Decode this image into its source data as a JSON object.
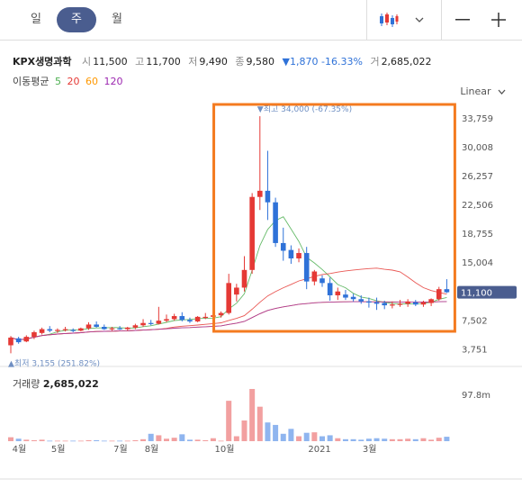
{
  "period_tabs": [
    {
      "label": "일"
    },
    {
      "label": "주",
      "active": true
    },
    {
      "label": "월"
    }
  ],
  "toolbar": {
    "chart_type_icon": "candlestick-icon",
    "dropdown_icon": "chevron-down-icon",
    "zoom_out": "—",
    "zoom_in": "+"
  },
  "summary": {
    "name": "KPX생명과학",
    "open_label": "시",
    "open": "11,500",
    "high_label": "고",
    "high": "11,700",
    "low_label": "저",
    "low": "9,490",
    "close_label": "종",
    "close": "9,580",
    "change_arrow": "▼",
    "change": "1,870",
    "change_pct": "-16.33%",
    "volume_label": "거",
    "volume": "2,685,022"
  },
  "moving_avg": {
    "label": "이동평균",
    "periods": [
      "5",
      "20",
      "60",
      "120"
    ],
    "colors": [
      "#4caf50",
      "#e53935",
      "#ff9800",
      "#9c27b0"
    ]
  },
  "scale": "Linear",
  "colors": {
    "up": "#e53935",
    "down": "#2f72d8",
    "highlight": "#f47b20",
    "price_tag": "#4a5d8f"
  },
  "chart_data": {
    "type": "candlestick",
    "y_ticks": [
      "33,759",
      "30,008",
      "26,257",
      "22,506",
      "18,755",
      "15,004",
      "11,253",
      "7,502",
      "3,751"
    ],
    "ylim": [
      2500,
      36000
    ],
    "current_price_tag": "11,100",
    "max_label": "▼최고 34,000 (-67.35%)",
    "min_label": "▲최저 3,155 (251.82%)",
    "x_ticks": [
      {
        "i": 1,
        "label": "4월"
      },
      {
        "i": 6,
        "label": "5월"
      },
      {
        "i": 14,
        "label": "7월"
      },
      {
        "i": 18,
        "label": "8월"
      },
      {
        "i": 27,
        "label": "10월"
      },
      {
        "i": 39,
        "label": "2021"
      },
      {
        "i": 46,
        "label": "3월"
      }
    ],
    "volume_title": "거래량",
    "volume_value": "2,685,022",
    "volume_tick": "97.8m",
    "volume_max": 106,
    "candles": [
      [
        4200,
        5400,
        3155,
        5200,
        8
      ],
      [
        5100,
        5300,
        4400,
        4600,
        5
      ],
      [
        4700,
        5500,
        4600,
        5300,
        3
      ],
      [
        5300,
        6100,
        5000,
        5900,
        2
      ],
      [
        5800,
        6500,
        5600,
        6300,
        3
      ],
      [
        6300,
        6700,
        5900,
        6100,
        1
      ],
      [
        6100,
        6400,
        5800,
        6200,
        1
      ],
      [
        6200,
        6600,
        6000,
        6300,
        1
      ],
      [
        6200,
        6400,
        5900,
        6100,
        1
      ],
      [
        6100,
        6500,
        6000,
        6400,
        1
      ],
      [
        6400,
        7200,
        6200,
        6900,
        2
      ],
      [
        6900,
        7300,
        6500,
        6600,
        2
      ],
      [
        6600,
        6900,
        6200,
        6300,
        1
      ],
      [
        6300,
        6600,
        6100,
        6400,
        1
      ],
      [
        6400,
        6700,
        6200,
        6300,
        1
      ],
      [
        6300,
        6600,
        6100,
        6500,
        1
      ],
      [
        6500,
        7000,
        6300,
        6800,
        2
      ],
      [
        6800,
        7600,
        6600,
        7100,
        4
      ],
      [
        7100,
        7500,
        6800,
        7000,
        15
      ],
      [
        7000,
        9200,
        6900,
        7400,
        12
      ],
      [
        7400,
        8200,
        7200,
        7600,
        5
      ],
      [
        7600,
        8300,
        7400,
        8000,
        7
      ],
      [
        8000,
        8500,
        7300,
        7500,
        14
      ],
      [
        7500,
        7800,
        7100,
        7300,
        3
      ],
      [
        7300,
        8000,
        7200,
        7900,
        3
      ],
      [
        7900,
        8400,
        7600,
        7900,
        2
      ],
      [
        7900,
        8500,
        7400,
        8100,
        6
      ],
      [
        8100,
        8600,
        7800,
        8400,
        1
      ],
      [
        8400,
        13500,
        8200,
        12300,
        82
      ],
      [
        10800,
        12200,
        9900,
        11700,
        10
      ],
      [
        11700,
        15800,
        11200,
        14000,
        42
      ],
      [
        14000,
        24000,
        13500,
        23500,
        106
      ],
      [
        23500,
        34000,
        21800,
        24300,
        70
      ],
      [
        24300,
        29500,
        20500,
        22800,
        38
      ],
      [
        22800,
        23400,
        17000,
        17500,
        33
      ],
      [
        17500,
        19500,
        15200,
        16500,
        15
      ],
      [
        16600,
        17200,
        14800,
        15500,
        25
      ],
      [
        15500,
        16800,
        15000,
        16200,
        10
      ],
      [
        16200,
        17000,
        11500,
        12500,
        17
      ],
      [
        12500,
        14000,
        12000,
        13800,
        18
      ],
      [
        12900,
        13300,
        11800,
        12300,
        10
      ],
      [
        12300,
        13000,
        10000,
        10700,
        12
      ],
      [
        10700,
        11700,
        10100,
        11200,
        6
      ],
      [
        10800,
        11400,
        10100,
        10400,
        4
      ],
      [
        10500,
        10900,
        9900,
        10200,
        4
      ],
      [
        10200,
        10700,
        9600,
        9900,
        3
      ],
      [
        9900,
        10400,
        9100,
        9800,
        5
      ],
      [
        9800,
        10400,
        8800,
        9600,
        6
      ],
      [
        9700,
        10000,
        8900,
        9400,
        5
      ],
      [
        9400,
        9900,
        9000,
        9500,
        4
      ],
      [
        9500,
        10100,
        9200,
        9600,
        4
      ],
      [
        9600,
        10200,
        9200,
        9900,
        5
      ],
      [
        9800,
        10100,
        9300,
        9500,
        4
      ],
      [
        9500,
        10000,
        9200,
        9800,
        6
      ],
      [
        9700,
        10300,
        9300,
        10200,
        3
      ],
      [
        10200,
        11800,
        10000,
        11500,
        7
      ],
      [
        11500,
        12800,
        11000,
        11100,
        9
      ]
    ]
  }
}
